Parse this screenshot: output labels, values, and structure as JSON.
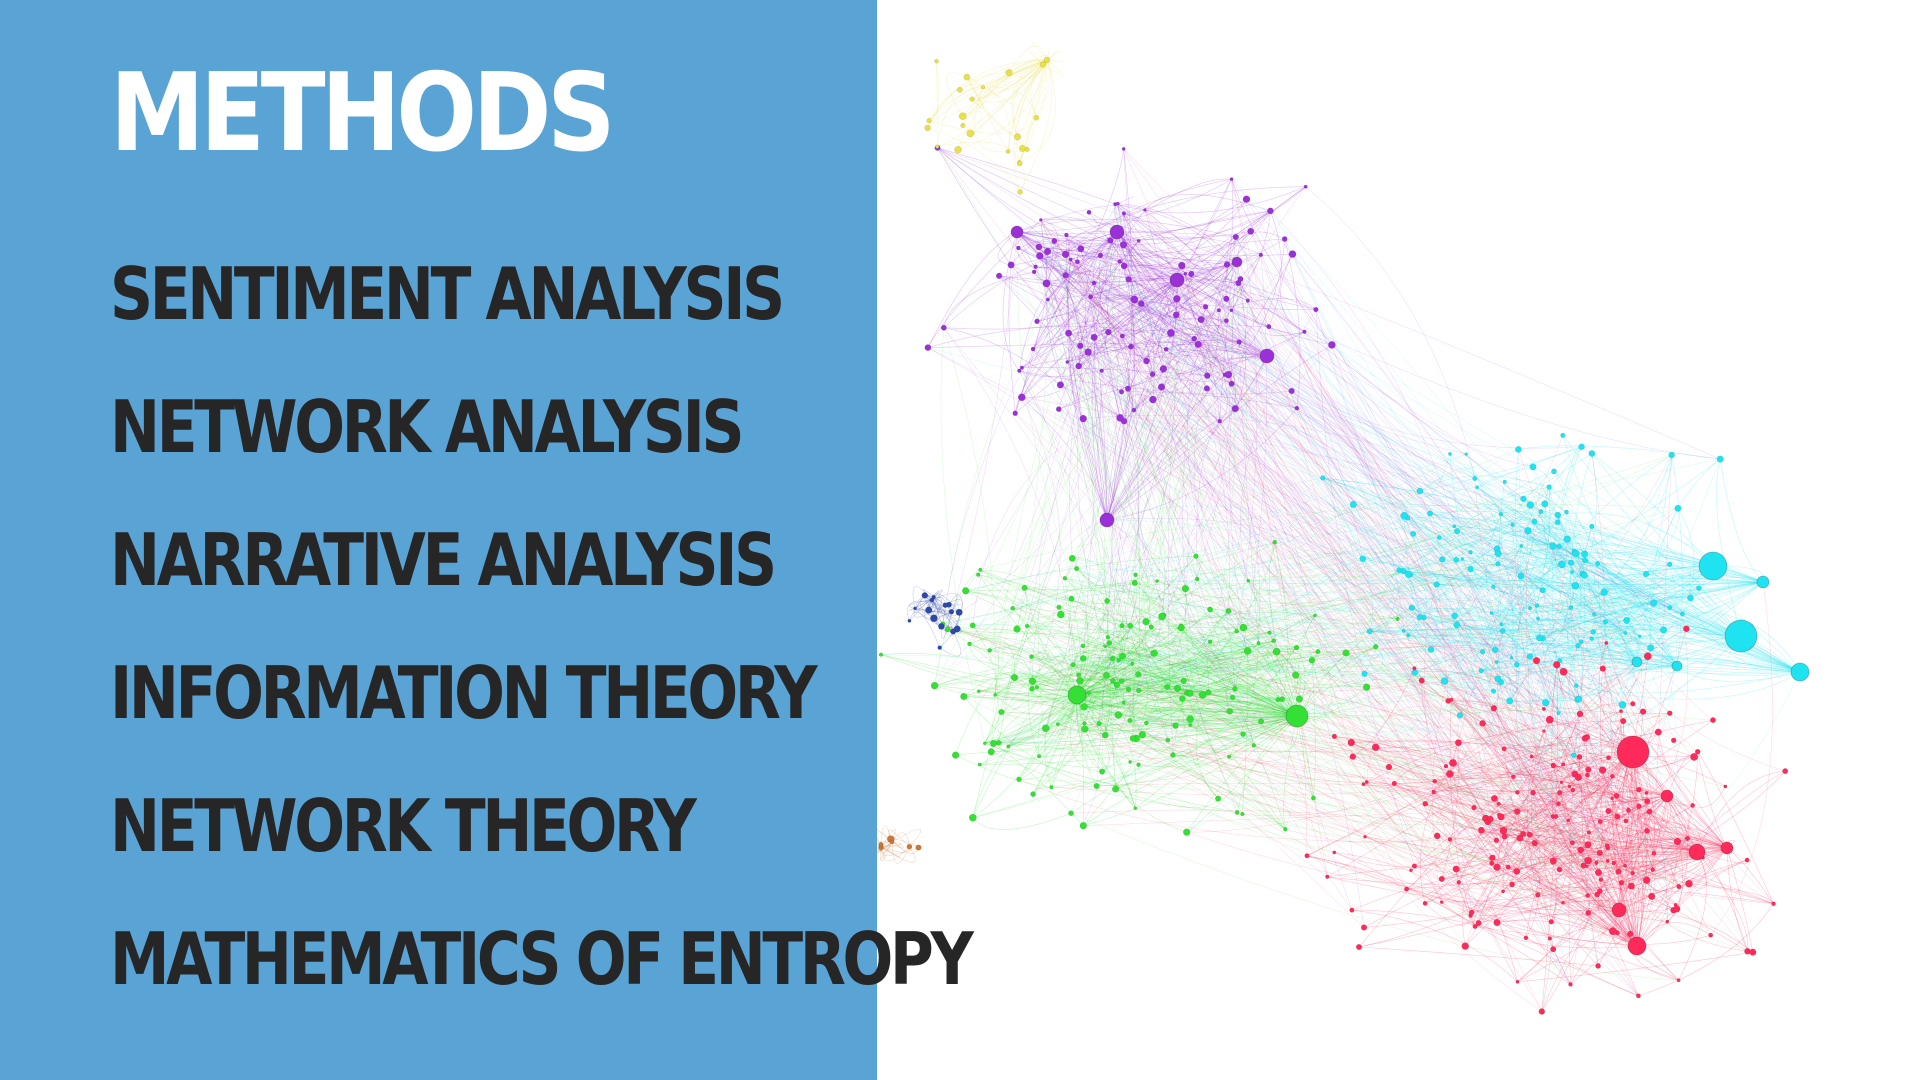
{
  "slide": {
    "title": "METHODS",
    "methods": [
      "SENTIMENT ANALYSIS",
      "NETWORK ANALYSIS",
      "NARRATIVE ANALYSIS",
      "INFORMATION THEORY",
      "NETWORK THEORY",
      "MATHEMATICS OF ENTROPY"
    ]
  },
  "colors": {
    "panel": "#5aa3d5",
    "title": "#ffffff",
    "list_text": "#262626"
  },
  "network": {
    "clusters": [
      {
        "name": "purple",
        "color": "#9b30d9"
      },
      {
        "name": "green",
        "color": "#33e033"
      },
      {
        "name": "cyan",
        "color": "#1fe3f0"
      },
      {
        "name": "red",
        "color": "#ff2a5a"
      },
      {
        "name": "yellow",
        "color": "#e8e04a"
      },
      {
        "name": "blue",
        "color": "#2d48a8"
      },
      {
        "name": "orange",
        "color": "#c8783a"
      }
    ]
  }
}
